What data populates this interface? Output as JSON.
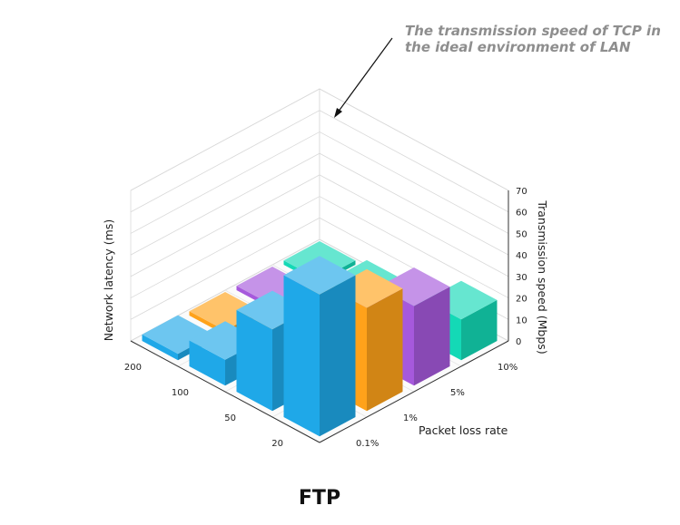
{
  "chart_data": {
    "type": "bar3d",
    "title": "FTP",
    "xlabel": "Network latency (ms)",
    "ylabel": "Packet loss rate",
    "zlabel": "Transmission speed (Mbps)",
    "latency_values": [
      "20",
      "50",
      "100",
      "200"
    ],
    "loss_rates": [
      "0.1%",
      "1%",
      "5%",
      "10%"
    ],
    "z_ticks": [
      "0",
      "10",
      "20",
      "30",
      "40",
      "50",
      "60",
      "70"
    ],
    "zlim": [
      0,
      70
    ],
    "grid": true,
    "series": [
      {
        "name": "0.1%",
        "color": "#1fa8e8",
        "values": [
          66,
          38,
          12,
          3
        ]
      },
      {
        "name": "1%",
        "color": "#ffa21a",
        "values": [
          48,
          32,
          6,
          2
        ]
      },
      {
        "name": "5%",
        "color": "#a659dc",
        "values": [
          37,
          23,
          6,
          2
        ]
      },
      {
        "name": "10%",
        "color": "#14d9b6",
        "values": [
          19,
          10,
          5,
          2
        ]
      }
    ],
    "annotation": {
      "lines": [
        "The transmission speed of TCP in",
        "the ideal environment of LAN"
      ]
    }
  }
}
